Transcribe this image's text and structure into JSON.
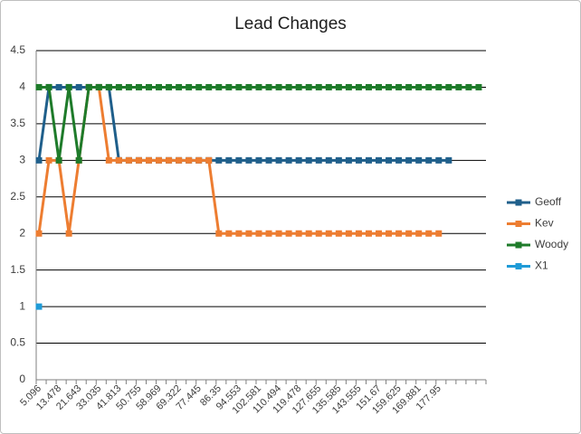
{
  "chart_data": {
    "type": "line",
    "title": "Lead Changes",
    "xlabel": "",
    "ylabel": "",
    "ylim": [
      0,
      4.5
    ],
    "yticks": [
      "0",
      "0.5",
      "1",
      "1.5",
      "2",
      "2.5",
      "3",
      "3.5",
      "4",
      "4.5"
    ],
    "grid": "horizontal",
    "legend_position": "right",
    "x_tick_labels": [
      "5.096",
      "13.478",
      "21.643",
      "33.035",
      "41.813",
      "50.755",
      "58.969",
      "69.322",
      "77.445",
      "86.35",
      "94.553",
      "102.581",
      "110.494",
      "119.478",
      "127.655",
      "135.585",
      "143.555",
      "151.67",
      "159.625",
      "169.881",
      "177.95"
    ],
    "point_count": 45,
    "series": [
      {
        "name": "Geoff",
        "color": "#1f5f8b",
        "values": [
          3,
          4,
          4,
          4,
          4,
          4,
          4,
          4,
          3,
          3,
          3,
          3,
          3,
          3,
          3,
          3,
          3,
          3,
          3,
          3,
          3,
          3,
          3,
          3,
          3,
          3,
          3,
          3,
          3,
          3,
          3,
          3,
          3,
          3,
          3,
          3,
          3,
          3,
          3,
          3,
          3,
          3
        ]
      },
      {
        "name": "Kev",
        "color": "#ed7d31",
        "values": [
          2,
          3,
          3,
          2,
          3,
          4,
          4,
          3,
          3,
          3,
          3,
          3,
          3,
          3,
          3,
          3,
          3,
          3,
          2,
          2,
          2,
          2,
          2,
          2,
          2,
          2,
          2,
          2,
          2,
          2,
          2,
          2,
          2,
          2,
          2,
          2,
          2,
          2,
          2,
          2,
          2
        ]
      },
      {
        "name": "Woody",
        "color": "#1e7b2a",
        "values": [
          4,
          4,
          3,
          4,
          3,
          4,
          4,
          4,
          4,
          4,
          4,
          4,
          4,
          4,
          4,
          4,
          4,
          4,
          4,
          4,
          4,
          4,
          4,
          4,
          4,
          4,
          4,
          4,
          4,
          4,
          4,
          4,
          4,
          4,
          4,
          4,
          4,
          4,
          4,
          4,
          4,
          4,
          4,
          4,
          4
        ]
      },
      {
        "name": "X1",
        "color": "#1f9bd7",
        "values": [
          1
        ]
      }
    ]
  }
}
